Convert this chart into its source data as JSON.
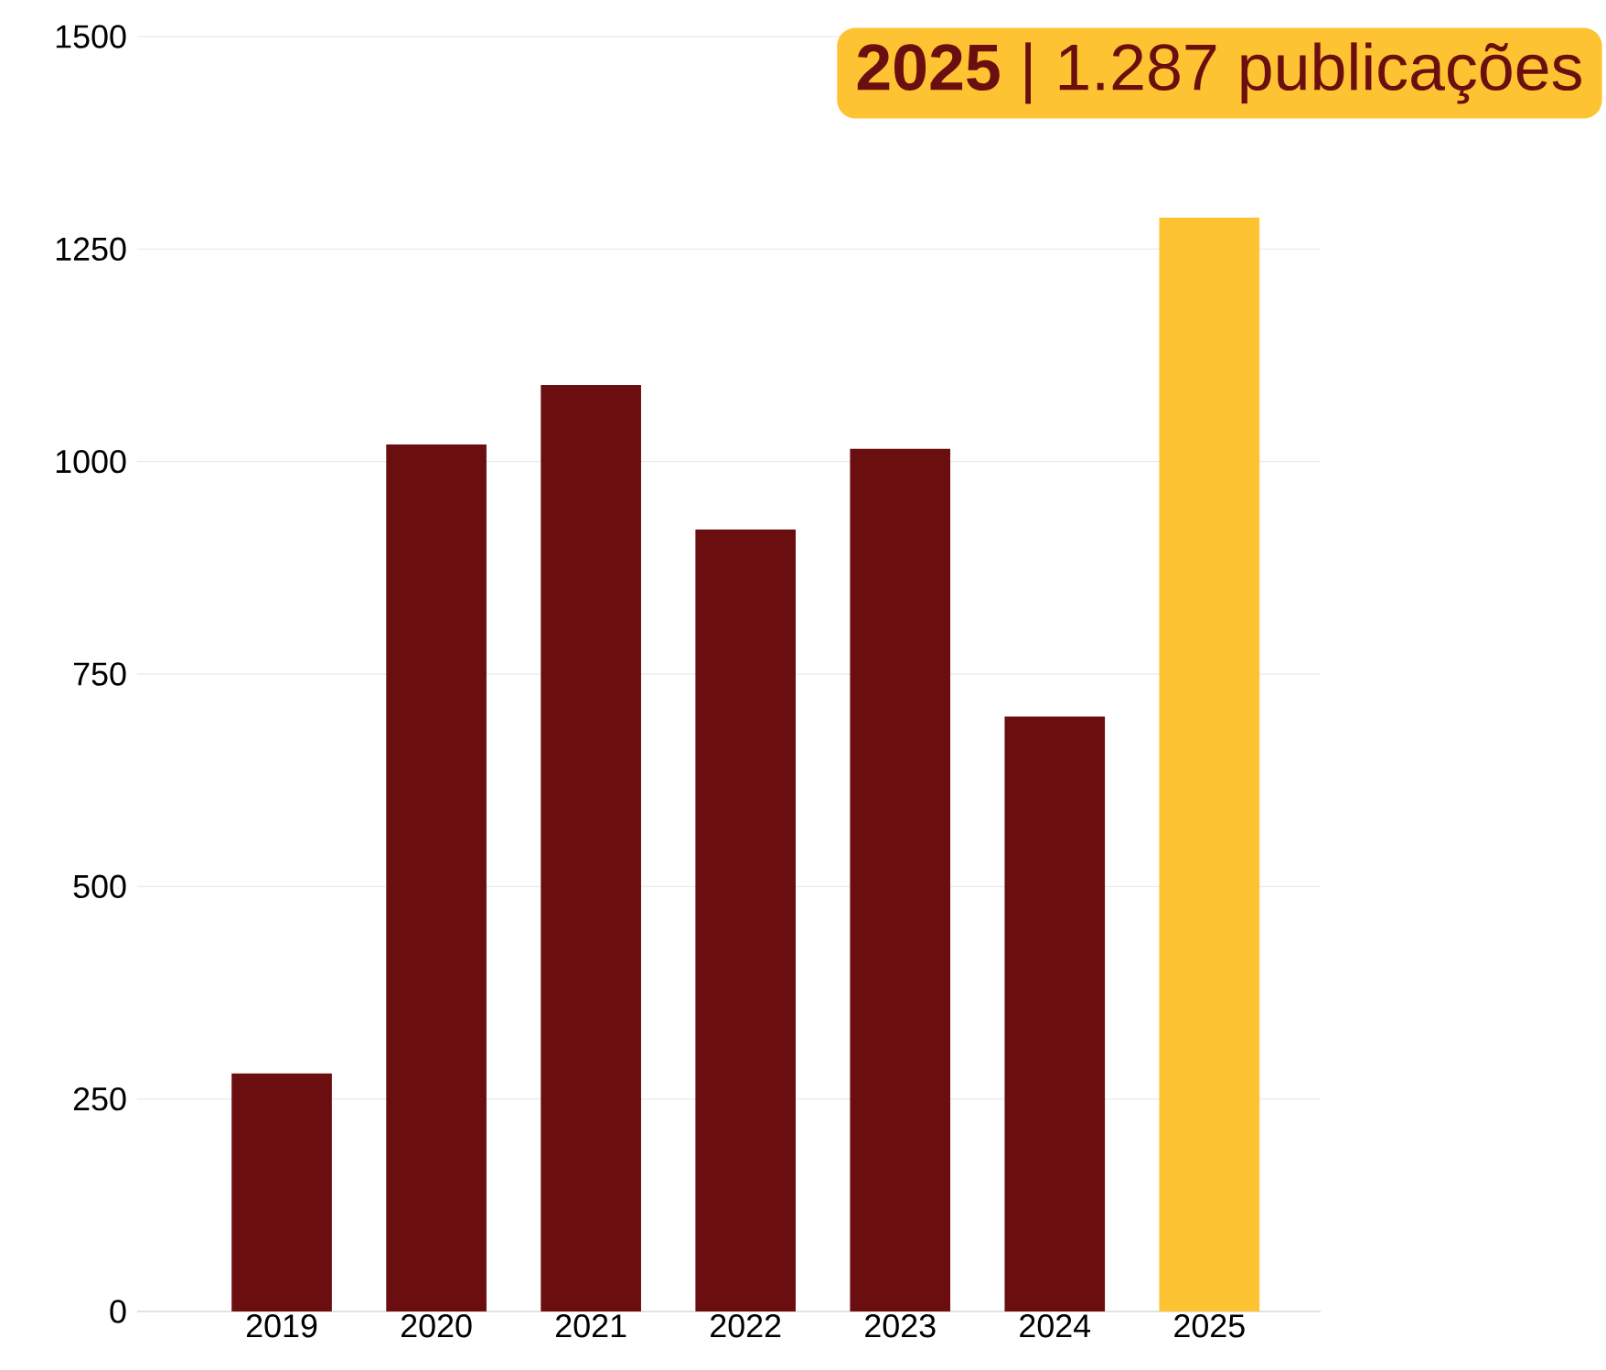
{
  "chart_data": {
    "type": "bar",
    "categories": [
      "2019",
      "2020",
      "2021",
      "2022",
      "2023",
      "2024",
      "2025"
    ],
    "values": [
      280,
      1020,
      1090,
      920,
      1015,
      700,
      1287
    ],
    "colors": [
      "#6b0e10",
      "#6b0e10",
      "#6b0e10",
      "#6b0e10",
      "#6b0e10",
      "#6b0e10",
      "#fdc332"
    ],
    "ylim": [
      0,
      1500
    ],
    "yticks": [
      0,
      250,
      500,
      750,
      1000,
      1250,
      1500
    ],
    "grid": "y",
    "annotations": [
      "**2025** | 1.287 publicações"
    ]
  }
}
